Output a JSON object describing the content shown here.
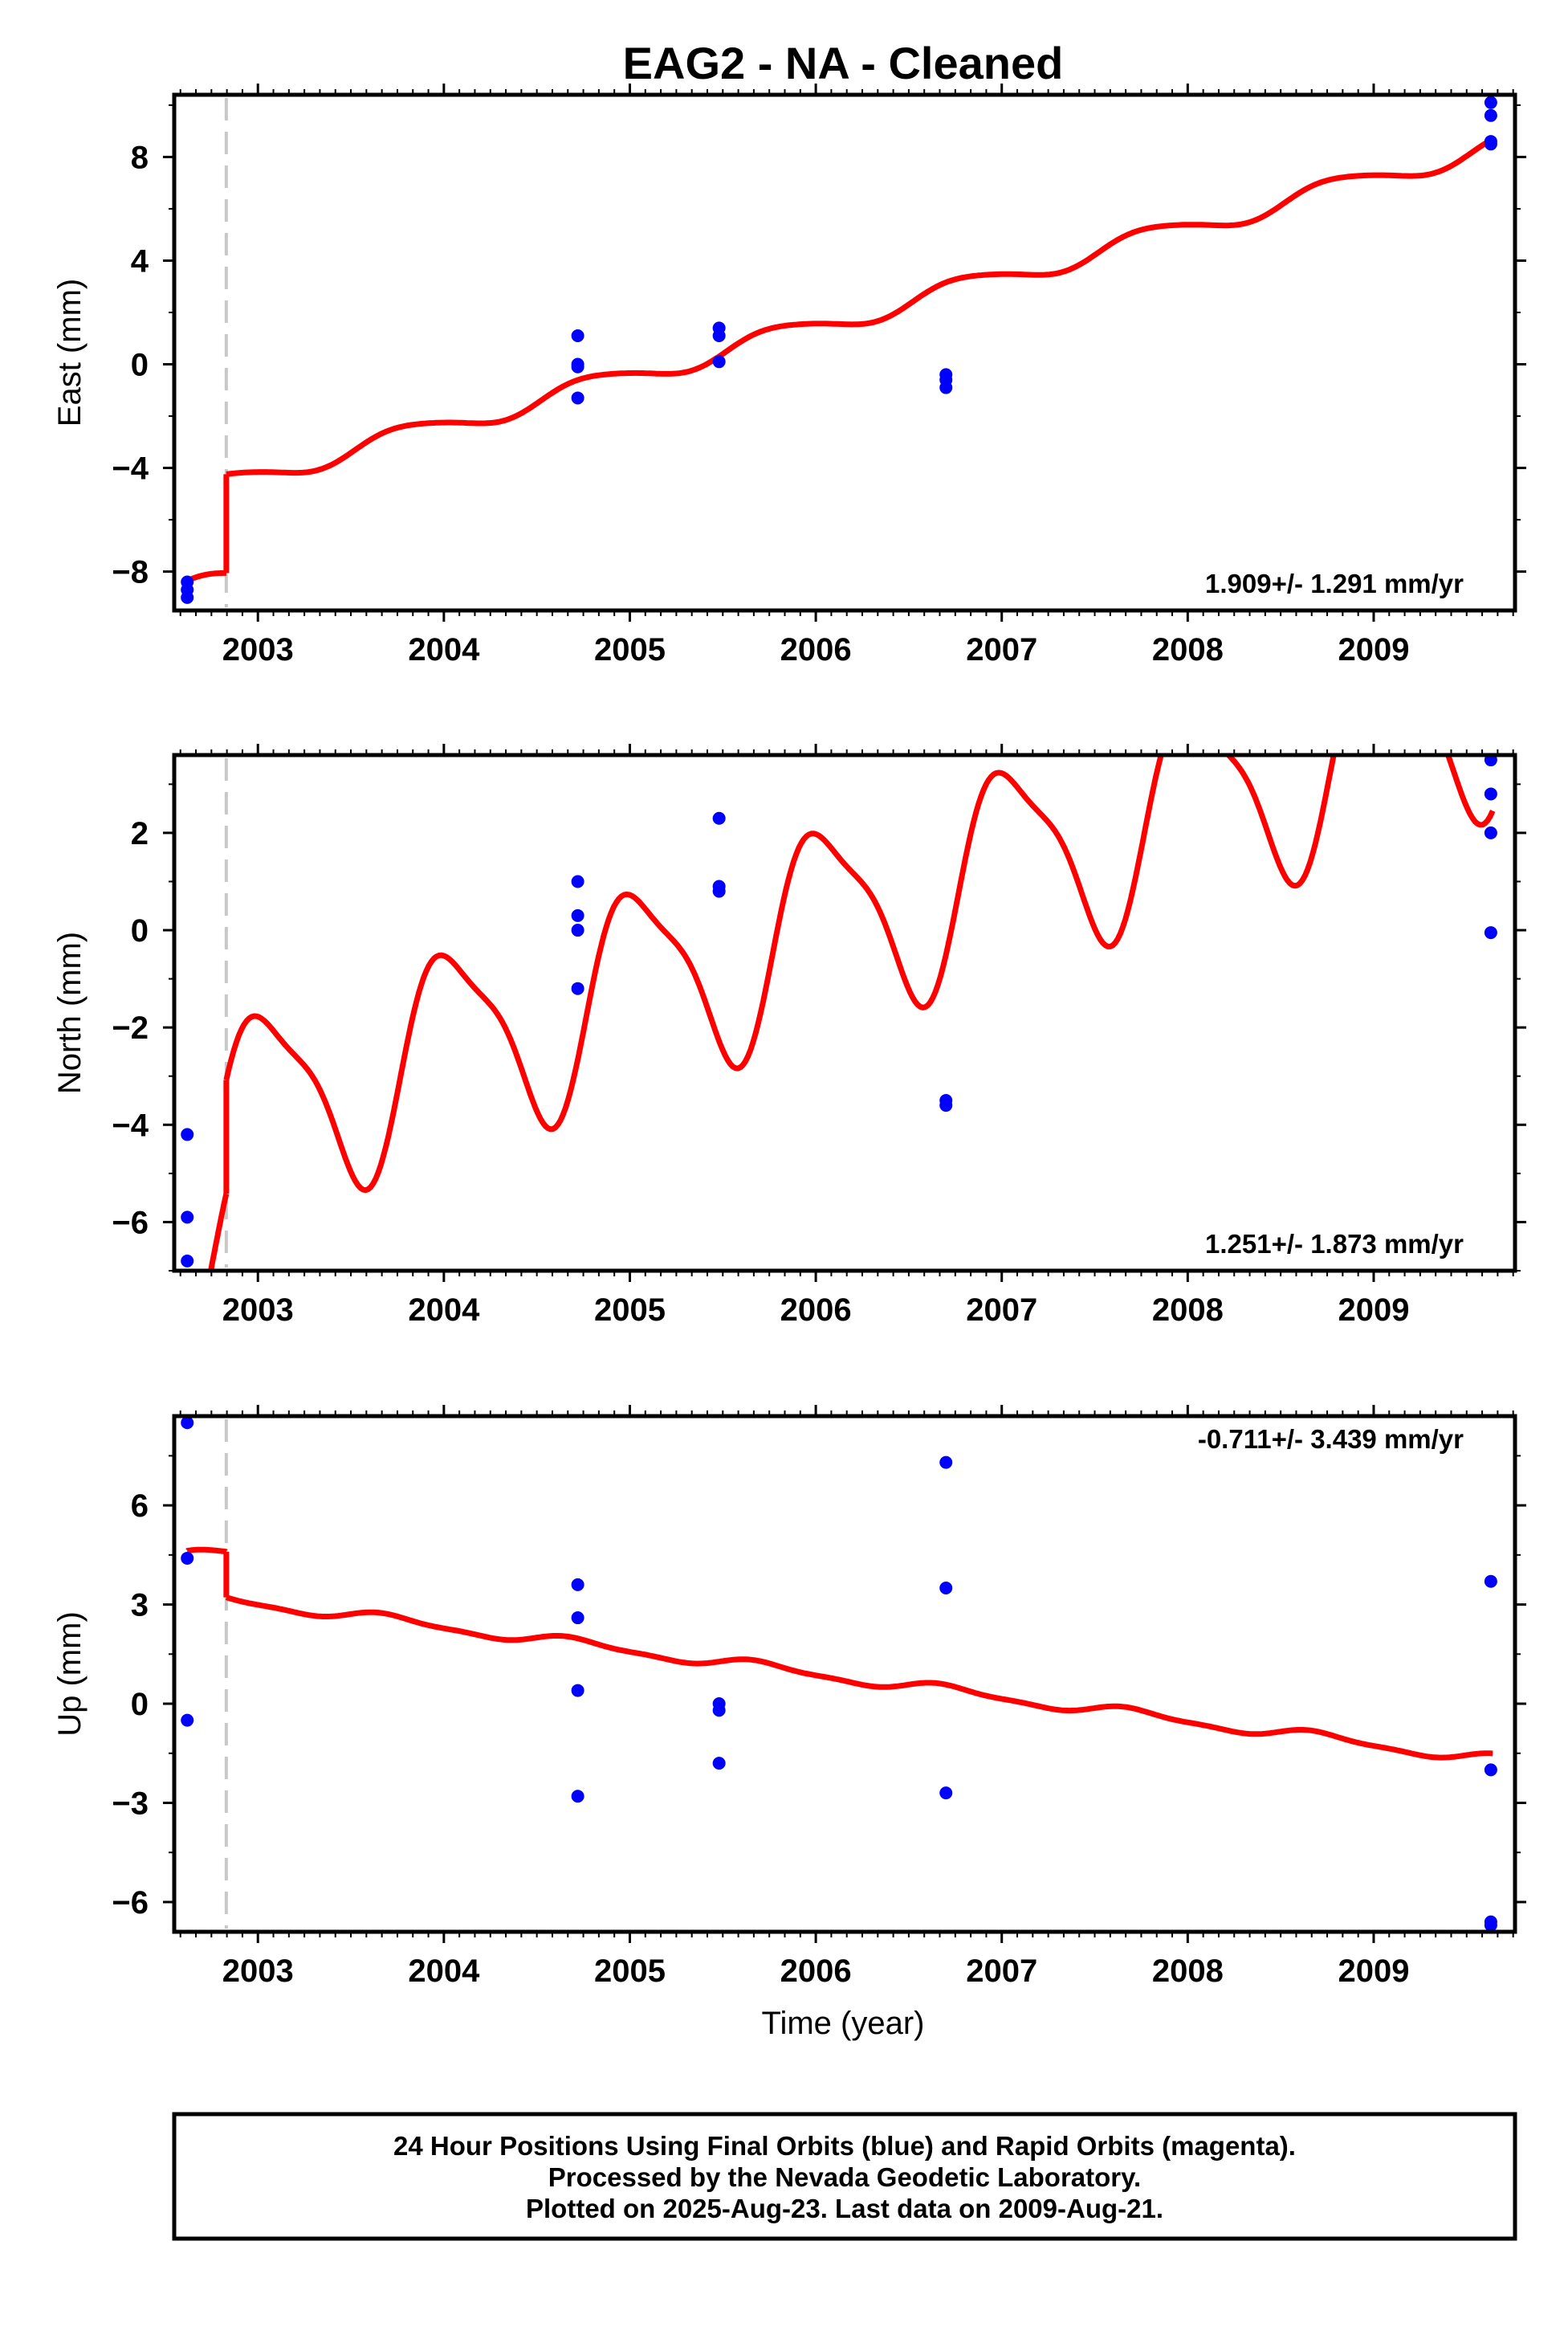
{
  "title": "EAG2  - NA - Cleaned",
  "xlabel": "Time (year)",
  "colors": {
    "final_orbits": "#0000ff",
    "model": "#ff0000",
    "offset_line": "#c8c8c8",
    "frame": "#000000"
  },
  "x_ticks": [
    "2003",
    "2004",
    "2005",
    "2006",
    "2007",
    "2008",
    "2009"
  ],
  "footer": {
    "line1": "24 Hour Positions Using Final Orbits (blue) and Rapid Orbits (magenta).",
    "line2": "Processed by the Nevada Geodetic Laboratory.",
    "line3": "Plotted on 2025-Aug-23. Last data on 2009-Aug-21."
  },
  "chart_data": [
    {
      "type": "scatter",
      "ylabel": "East (mm)",
      "rate_text": "1.909+/- 1.291 mm/yr",
      "xlim": [
        2002.55,
        2009.76
      ],
      "ylim": [
        -9.5,
        10.4
      ],
      "y_ticks": [
        -8,
        -4,
        0,
        4,
        8
      ],
      "y_tick_labels": [
        "−8",
        "−4",
        "0",
        "4",
        "8"
      ],
      "offset_epoch": 2002.83,
      "model": {
        "pre_offset": {
          "x_start": 2002.62,
          "x_end": 2002.83,
          "intercept": -8.68,
          "slope": 1.5,
          "amp_annual": 0.4,
          "phase_annual": 3.14,
          "amp_semi": 0.05,
          "phase_semi": 0.0
        },
        "post_offset": {
          "x_start": 2002.83,
          "x_end": 2009.64,
          "intercept": -4.59,
          "slope": 1.909,
          "amp_annual": 0.4,
          "phase_annual": 2.87,
          "amp_semi": 0.05,
          "phase_semi": 0.0
        }
      },
      "points": [
        {
          "x": 2002.62,
          "y": -8.4
        },
        {
          "x": 2002.62,
          "y": -8.7
        },
        {
          "x": 2002.62,
          "y": -9.0
        },
        {
          "x": 2004.72,
          "y": 1.1
        },
        {
          "x": 2004.72,
          "y": 0.0
        },
        {
          "x": 2004.72,
          "y": -0.1
        },
        {
          "x": 2004.72,
          "y": -1.3
        },
        {
          "x": 2005.48,
          "y": 1.4
        },
        {
          "x": 2005.48,
          "y": 1.1
        },
        {
          "x": 2005.48,
          "y": 0.1
        },
        {
          "x": 2006.7,
          "y": -0.4
        },
        {
          "x": 2006.7,
          "y": -0.6
        },
        {
          "x": 2006.7,
          "y": -0.9
        },
        {
          "x": 2009.63,
          "y": 10.1
        },
        {
          "x": 2009.63,
          "y": 9.6
        },
        {
          "x": 2009.63,
          "y": 8.6
        },
        {
          "x": 2009.63,
          "y": 8.5
        }
      ]
    },
    {
      "type": "scatter",
      "ylabel": "North (mm)",
      "rate_text": "1.251+/- 1.873 mm/yr",
      "xlim": [
        2002.55,
        2009.76
      ],
      "ylim": [
        -7.0,
        3.6
      ],
      "y_ticks": [
        -6,
        -4,
        -2,
        0,
        2
      ],
      "y_tick_labels": [
        "−6",
        "−4",
        "−2",
        "0",
        "2"
      ],
      "offset_epoch": 2002.83,
      "model": {
        "pre_offset": {
          "x_start": 2002.62,
          "x_end": 2002.83,
          "intercept": -6.5,
          "slope": 1.25,
          "amp_annual": 2.0,
          "phase_annual": 1.27,
          "amp_semi": 0.5,
          "phase_semi": 3.14
        },
        "post_offset": {
          "x_start": 2002.83,
          "x_end": 2009.64,
          "intercept": -3.9,
          "slope": 1.251,
          "amp_annual": 2.0,
          "phase_annual": 1.27,
          "amp_semi": 0.5,
          "phase_semi": 3.14
        }
      },
      "points": [
        {
          "x": 2002.62,
          "y": -4.2
        },
        {
          "x": 2002.62,
          "y": -5.9
        },
        {
          "x": 2002.62,
          "y": -6.8
        },
        {
          "x": 2004.72,
          "y": 1.0
        },
        {
          "x": 2004.72,
          "y": 0.3
        },
        {
          "x": 2004.72,
          "y": 0.0
        },
        {
          "x": 2004.72,
          "y": -1.2
        },
        {
          "x": 2005.48,
          "y": 2.3
        },
        {
          "x": 2005.48,
          "y": 0.9
        },
        {
          "x": 2005.48,
          "y": 0.8
        },
        {
          "x": 2006.7,
          "y": -3.5
        },
        {
          "x": 2006.7,
          "y": -3.6
        },
        {
          "x": 2009.63,
          "y": 3.5
        },
        {
          "x": 2009.63,
          "y": 2.8
        },
        {
          "x": 2009.63,
          "y": 2.0
        },
        {
          "x": 2009.63,
          "y": -0.05
        }
      ]
    },
    {
      "type": "scatter",
      "ylabel": "Up (mm)",
      "rate_text": "-0.711+/- 3.439 mm/yr",
      "xlim": [
        2002.55,
        2009.76
      ],
      "ylim": [
        -6.9,
        8.7
      ],
      "y_ticks": [
        -6,
        -3,
        0,
        3,
        6
      ],
      "y_tick_labels": [
        "−6",
        "−3",
        "0",
        "3",
        "6"
      ],
      "offset_epoch": 2002.83,
      "model": {
        "pre_offset": {
          "x_start": 2002.62,
          "x_end": 2002.83,
          "intercept": 4.45,
          "slope": 0.4,
          "amp_annual": 0.15,
          "phase_annual": 3.4,
          "amp_semi": 0.05,
          "phase_semi": 0.0
        },
        "post_offset": {
          "x_start": 2002.83,
          "x_end": 2009.64,
          "intercept": 3.15,
          "slope": -0.711,
          "amp_annual": 0.15,
          "phase_annual": 3.4,
          "amp_semi": 0.05,
          "phase_semi": 0.0
        }
      },
      "points": [
        {
          "x": 2002.62,
          "y": 8.5
        },
        {
          "x": 2002.62,
          "y": 4.4
        },
        {
          "x": 2002.62,
          "y": -0.5
        },
        {
          "x": 2004.72,
          "y": 3.6
        },
        {
          "x": 2004.72,
          "y": 2.6
        },
        {
          "x": 2004.72,
          "y": 0.4
        },
        {
          "x": 2004.72,
          "y": -2.8
        },
        {
          "x": 2005.48,
          "y": 0.0
        },
        {
          "x": 2005.48,
          "y": -0.2
        },
        {
          "x": 2005.48,
          "y": -1.8
        },
        {
          "x": 2006.7,
          "y": 7.3
        },
        {
          "x": 2006.7,
          "y": 3.5
        },
        {
          "x": 2006.7,
          "y": -2.7
        },
        {
          "x": 2009.63,
          "y": 3.7
        },
        {
          "x": 2009.63,
          "y": -2.0
        },
        {
          "x": 2009.63,
          "y": -6.6
        },
        {
          "x": 2009.63,
          "y": -6.7
        }
      ]
    }
  ]
}
